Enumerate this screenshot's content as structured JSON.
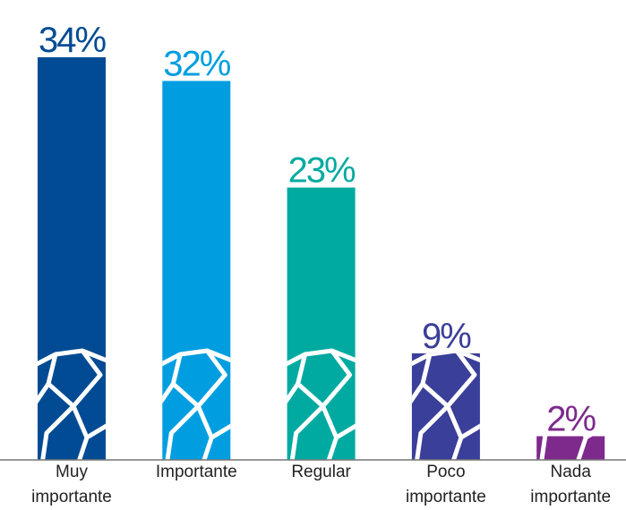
{
  "chart_data": {
    "type": "bar",
    "categories": [
      "Muy importante",
      "Importante",
      "Regular",
      "Poco importante",
      "Nada importante"
    ],
    "values": [
      34,
      32,
      23,
      9,
      2
    ],
    "value_labels": [
      "34%",
      "32%",
      "23%",
      "9%",
      "2%"
    ],
    "colors": [
      "#004b93",
      "#009ee0",
      "#00aaa0",
      "#3a3f99",
      "#7d2a8c"
    ]
  }
}
